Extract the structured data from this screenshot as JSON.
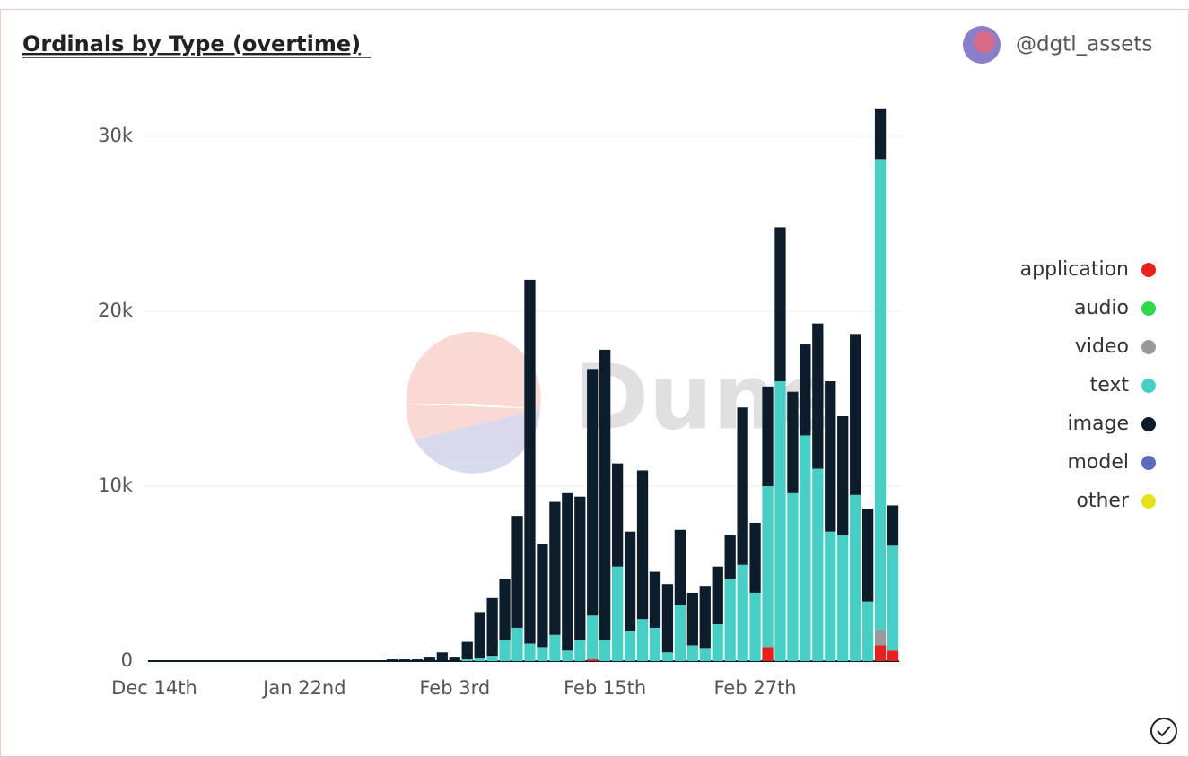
{
  "chart_data": {
    "type": "stacked-bar",
    "title": "Ordinals by Type (overtime)",
    "author": "@dgtl_assets",
    "watermark": "Dune",
    "categories": [
      "Dec 14th",
      null,
      null,
      null,
      null,
      null,
      null,
      null,
      null,
      null,
      null,
      null,
      "Jan 22nd",
      null,
      null,
      null,
      null,
      null,
      null,
      null,
      null,
      null,
      null,
      null,
      "Feb 3rd",
      null,
      null,
      null,
      null,
      null,
      null,
      null,
      null,
      null,
      null,
      null,
      "Feb 15th",
      null,
      null,
      null,
      null,
      null,
      null,
      null,
      null,
      null,
      null,
      null,
      "Feb 27th",
      null,
      null,
      null,
      null,
      null,
      null,
      null,
      null,
      null,
      null,
      null
    ],
    "series": [
      {
        "name": "application",
        "color": "#e8211e",
        "values": [
          0,
          0,
          0,
          0,
          0,
          0,
          0,
          0,
          0,
          0,
          0,
          0,
          0,
          0,
          0,
          0,
          0,
          0,
          0,
          0,
          0,
          0,
          0,
          0,
          0,
          0,
          0,
          0,
          0,
          0,
          0,
          0,
          0,
          0,
          0,
          100,
          0,
          0,
          0,
          0,
          0,
          0,
          0,
          0,
          0,
          0,
          0,
          0,
          0,
          800,
          0,
          0,
          0,
          0,
          0,
          0,
          0,
          0,
          900,
          600
        ]
      },
      {
        "name": "audio",
        "color": "#2fd94e",
        "values": [
          0,
          0,
          0,
          0,
          0,
          0,
          0,
          0,
          0,
          0,
          0,
          0,
          0,
          0,
          0,
          0,
          0,
          0,
          0,
          0,
          0,
          0,
          0,
          0,
          0,
          0,
          0,
          0,
          0,
          0,
          0,
          0,
          0,
          0,
          0,
          0,
          0,
          0,
          0,
          0,
          0,
          0,
          0,
          0,
          0,
          0,
          0,
          0,
          0,
          0,
          0,
          0,
          0,
          0,
          0,
          0,
          0,
          0,
          0,
          0
        ]
      },
      {
        "name": "video",
        "color": "#9a9a9a",
        "values": [
          0,
          0,
          0,
          0,
          0,
          0,
          0,
          0,
          0,
          0,
          0,
          0,
          0,
          0,
          0,
          0,
          0,
          0,
          0,
          0,
          0,
          0,
          0,
          0,
          0,
          0,
          0,
          0,
          0,
          0,
          0,
          0,
          0,
          0,
          0,
          0,
          0,
          0,
          0,
          0,
          0,
          0,
          0,
          0,
          0,
          0,
          0,
          0,
          0,
          0,
          0,
          0,
          0,
          0,
          0,
          0,
          0,
          0,
          900,
          0
        ]
      },
      {
        "name": "text",
        "color": "#48cfc5",
        "values": [
          0,
          0,
          0,
          0,
          0,
          0,
          0,
          0,
          0,
          0,
          0,
          0,
          0,
          0,
          0,
          0,
          0,
          0,
          0,
          0,
          0,
          0,
          0,
          0,
          0,
          100,
          150,
          300,
          1200,
          1900,
          1000,
          800,
          1500,
          600,
          1200,
          2500,
          1200,
          5400,
          1700,
          2400,
          1900,
          500,
          3200,
          900,
          700,
          2100,
          4700,
          5500,
          3900,
          9200,
          16000,
          9600,
          12900,
          11000,
          7400,
          7200,
          9500,
          3400,
          26900,
          6000
        ]
      },
      {
        "name": "image",
        "color": "#0c1c2b",
        "values": [
          0,
          0,
          0,
          0,
          0,
          0,
          0,
          0,
          0,
          0,
          0,
          0,
          0,
          0,
          0,
          0,
          0,
          0,
          0,
          100,
          100,
          100,
          200,
          500,
          200,
          1000,
          2650,
          3300,
          3500,
          6400,
          20800,
          5900,
          7600,
          9000,
          8200,
          14100,
          16600,
          5900,
          5700,
          8500,
          3200,
          3900,
          4300,
          3000,
          3600,
          3300,
          2500,
          9000,
          4000,
          5700,
          8800,
          5800,
          5200,
          8300,
          8600,
          6800,
          9200,
          5300,
          2900,
          2300
        ]
      },
      {
        "name": "model",
        "color": "#5c6bbf",
        "values": [
          0,
          0,
          0,
          0,
          0,
          0,
          0,
          0,
          0,
          0,
          0,
          0,
          0,
          0,
          0,
          0,
          0,
          0,
          0,
          0,
          0,
          0,
          0,
          0,
          0,
          0,
          0,
          0,
          0,
          0,
          0,
          0,
          0,
          0,
          0,
          0,
          0,
          0,
          0,
          0,
          0,
          0,
          0,
          0,
          0,
          0,
          0,
          0,
          0,
          0,
          0,
          0,
          0,
          0,
          0,
          0,
          0,
          0,
          0,
          0
        ]
      },
      {
        "name": "other",
        "color": "#e5e21c",
        "values": [
          0,
          0,
          0,
          0,
          0,
          0,
          0,
          0,
          0,
          0,
          0,
          0,
          0,
          0,
          0,
          0,
          0,
          0,
          0,
          0,
          0,
          0,
          0,
          0,
          0,
          0,
          0,
          0,
          0,
          0,
          0,
          0,
          0,
          0,
          0,
          0,
          0,
          0,
          0,
          0,
          0,
          0,
          0,
          0,
          0,
          0,
          0,
          0,
          0,
          0,
          0,
          0,
          0,
          0,
          0,
          0,
          0,
          0,
          0,
          0
        ]
      }
    ],
    "ylim": [
      0,
      32000
    ],
    "yticks": [
      0,
      {
        "value": 10000,
        "label": "10k"
      },
      {
        "value": 20000,
        "label": "20k"
      },
      {
        "value": 30000,
        "label": "30k"
      }
    ],
    "grid": true,
    "legend": "right"
  }
}
